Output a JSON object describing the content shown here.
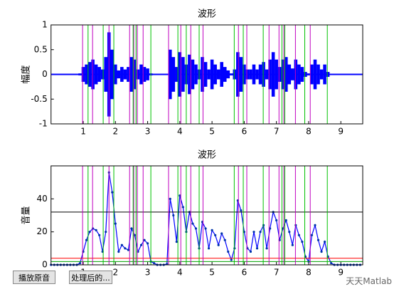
{
  "chart_data": [
    {
      "type": "waveform",
      "title": "波形",
      "ylabel": "幅度",
      "color": "#0000ff",
      "xlim": [
        0,
        9.68
      ],
      "ylim": [
        -1,
        1
      ],
      "xticks": [
        1,
        2,
        3,
        4,
        5,
        6,
        7,
        8,
        9
      ],
      "yticks": [
        -1,
        -0.5,
        0,
        0.5,
        1
      ],
      "x": [
        0,
        0.1,
        0.2,
        0.3,
        0.4,
        0.5,
        0.6,
        0.7,
        0.8,
        0.9,
        1,
        1.1,
        1.2,
        1.3,
        1.4,
        1.5,
        1.6,
        1.7,
        1.8,
        1.9,
        2,
        2.1,
        2.2,
        2.3,
        2.4,
        2.5,
        2.6,
        2.7,
        2.8,
        2.9,
        3,
        3.1,
        3.2,
        3.3,
        3.4,
        3.5,
        3.6,
        3.7,
        3.8,
        3.9,
        4,
        4.1,
        4.2,
        4.3,
        4.4,
        4.5,
        4.6,
        4.7,
        4.8,
        4.9,
        5,
        5.1,
        5.2,
        5.3,
        5.4,
        5.5,
        5.6,
        5.7,
        5.8,
        5.9,
        6,
        6.1,
        6.2,
        6.3,
        6.4,
        6.5,
        6.6,
        6.7,
        6.8,
        6.9,
        7,
        7.1,
        7.2,
        7.3,
        7.4,
        7.5,
        7.6,
        7.7,
        7.8,
        7.9,
        8,
        8.1,
        8.2,
        8.3,
        8.4,
        8.5,
        8.6,
        8.7,
        8.8,
        8.9,
        9,
        9.1,
        9.2,
        9.3,
        9.4,
        9.5,
        9.6
      ],
      "values": [
        0,
        0,
        0,
        0,
        0,
        0,
        0,
        0,
        0,
        0.02,
        0.15,
        0.2,
        0.25,
        0.3,
        0.2,
        0.15,
        0.1,
        0.35,
        0.85,
        0.5,
        0.2,
        0.08,
        0.15,
        0.1,
        0.15,
        0.35,
        0.3,
        0.1,
        0.2,
        0.15,
        0.12,
        0.02,
        0.01,
        0,
        0,
        0,
        0.01,
        0.5,
        0.35,
        0.15,
        0.45,
        0.35,
        0.2,
        0.4,
        0.3,
        0.2,
        0.1,
        0.35,
        0.25,
        0.1,
        0.3,
        0.2,
        0.1,
        0.25,
        0.15,
        0.08,
        0.02,
        0.1,
        0.45,
        0.35,
        0.2,
        0.1,
        0.1,
        0.2,
        0.1,
        0.2,
        0.25,
        0.1,
        0.3,
        0.45,
        0.3,
        0.15,
        0.3,
        0.35,
        0.2,
        0.12,
        0.3,
        0.2,
        0.15,
        0.05,
        0.02,
        0.2,
        0.3,
        0.2,
        0.1,
        0.2,
        0.05,
        0.01,
        0,
        0,
        0,
        0,
        0,
        0,
        0,
        0,
        0
      ],
      "vlines": [
        {
          "color": "#c000c0",
          "x": [
            0.98,
            1.29,
            1.8,
            2.44,
            2.57,
            2.68,
            2.86,
            3.65,
            4.03,
            4.34,
            4.72,
            5.82,
            6.08,
            6.77,
            7.08,
            7.23,
            7.59,
            8.05
          ]
        },
        {
          "color": "#00c000",
          "x": [
            1.15,
            1.62,
            1.95,
            2.55,
            2.64,
            3.1,
            3.94,
            4.2,
            4.6,
            5.69,
            5.97,
            6.59,
            7.17,
            7.26,
            7.88,
            8.58
          ]
        }
      ]
    },
    {
      "type": "line",
      "title": "波形",
      "ylabel": "音量",
      "color": "#0000ff",
      "xlim": [
        0,
        9.68
      ],
      "ylim": [
        0,
        60
      ],
      "xticks": [
        1,
        2,
        3,
        4,
        5,
        6,
        7,
        8,
        9
      ],
      "yticks": [
        0,
        20,
        40
      ],
      "x": [
        0,
        0.1,
        0.2,
        0.3,
        0.4,
        0.5,
        0.6,
        0.7,
        0.8,
        0.9,
        1,
        1.1,
        1.2,
        1.3,
        1.4,
        1.5,
        1.6,
        1.7,
        1.8,
        1.9,
        2,
        2.1,
        2.2,
        2.3,
        2.4,
        2.5,
        2.6,
        2.7,
        2.8,
        2.9,
        3,
        3.1,
        3.2,
        3.3,
        3.4,
        3.5,
        3.6,
        3.7,
        3.8,
        3.9,
        4,
        4.1,
        4.2,
        4.3,
        4.4,
        4.5,
        4.6,
        4.7,
        4.8,
        4.9,
        5,
        5.1,
        5.2,
        5.3,
        5.4,
        5.5,
        5.6,
        5.7,
        5.8,
        5.9,
        6,
        6.1,
        6.2,
        6.3,
        6.4,
        6.5,
        6.6,
        6.7,
        6.8,
        6.9,
        7,
        7.1,
        7.2,
        7.3,
        7.4,
        7.5,
        7.6,
        7.7,
        7.8,
        7.9,
        8,
        8.1,
        8.2,
        8.3,
        8.4,
        8.5,
        8.6,
        8.7,
        8.8,
        8.9,
        9,
        9.1,
        9.2,
        9.3,
        9.4,
        9.5,
        9.6
      ],
      "values": [
        0,
        0,
        0,
        0,
        0,
        0,
        0,
        0,
        0,
        1,
        8,
        15,
        20,
        22,
        21,
        18,
        8,
        20,
        56,
        44,
        25,
        8,
        12,
        10,
        9,
        22,
        18,
        8,
        12,
        15,
        13,
        2,
        1,
        0,
        0,
        0,
        0.5,
        40,
        30,
        14,
        42,
        35,
        20,
        32,
        25,
        22,
        10,
        26,
        22,
        10,
        21,
        18,
        12,
        19,
        15,
        8,
        3,
        10,
        39,
        33,
        20,
        10,
        8,
        20,
        10,
        20,
        24,
        10,
        22,
        32,
        27,
        15,
        22,
        27,
        20,
        12,
        24,
        18,
        14,
        5,
        2,
        18,
        24,
        15,
        8,
        14,
        5,
        1,
        0,
        0,
        0,
        0,
        0,
        0,
        0,
        0,
        0
      ],
      "hlines": [
        {
          "color": "#000000",
          "value": 32
        },
        {
          "color": "#ff0000",
          "value": 4
        },
        {
          "color": "#00a000",
          "value": 2
        }
      ],
      "vlines": [
        {
          "color": "#c000c0",
          "x": [
            0.98,
            1.29,
            1.8,
            2.44,
            2.57,
            2.68,
            2.86,
            3.65,
            4.03,
            4.34,
            4.72,
            5.82,
            6.08,
            6.77,
            7.08,
            7.23,
            7.59,
            8.05
          ]
        },
        {
          "color": "#00c000",
          "x": [
            1.15,
            1.62,
            1.95,
            2.55,
            2.64,
            3.1,
            3.94,
            4.2,
            4.6,
            5.69,
            5.97,
            6.59,
            7.17,
            7.26,
            7.88,
            8.58
          ]
        }
      ]
    }
  ],
  "buttons": [
    "播放原音",
    "处理后的..."
  ],
  "watermark": "天天Matlab"
}
